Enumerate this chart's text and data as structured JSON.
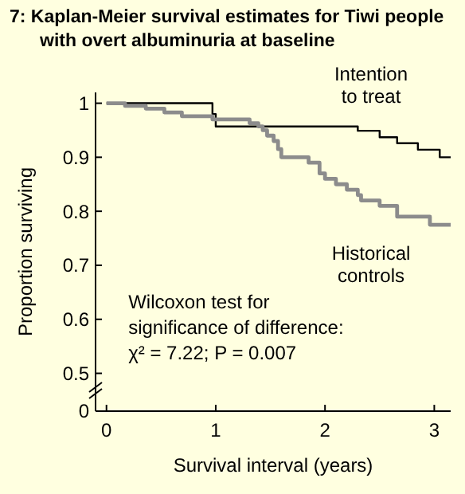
{
  "chart_data": {
    "type": "step",
    "title": "7: Kaplan-Meier survival estimates for Tiwi people\nwith overt albuminuria at baseline",
    "xlabel": "Survival interval (years)",
    "ylabel": "Proportion surviving",
    "xlim": [
      -0.1,
      3.15
    ],
    "xticks": [
      0,
      1,
      2,
      3
    ],
    "ylim": [
      0.43,
      1.02
    ],
    "yticks": [
      {
        "value": 0.43,
        "label": "0"
      },
      0.5,
      0.6,
      0.7,
      0.8,
      0.9,
      1
    ],
    "series": [
      {
        "name": "Intention\nto treat",
        "color": "#000000",
        "x": [
          0,
          0.97,
          1.0,
          2.3,
          2.5,
          2.66,
          2.85,
          3.05,
          3.15
        ],
        "values": [
          1,
          0.98,
          0.957,
          0.949,
          0.937,
          0.926,
          0.914,
          0.9,
          0.9
        ]
      },
      {
        "name": "Historical\ncontrols",
        "color": "#8c8c8c",
        "x": [
          0,
          0.17,
          0.36,
          0.53,
          0.69,
          0.97,
          1.31,
          1.39,
          1.43,
          1.47,
          1.53,
          1.57,
          1.6,
          1.85,
          1.95,
          2.0,
          2.1,
          2.2,
          2.3,
          2.33,
          2.5,
          2.66,
          2.96,
          3.15
        ],
        "values": [
          1,
          0.995,
          0.99,
          0.983,
          0.976,
          0.97,
          0.963,
          0.957,
          0.95,
          0.94,
          0.93,
          0.915,
          0.9,
          0.89,
          0.87,
          0.86,
          0.85,
          0.84,
          0.83,
          0.82,
          0.81,
          0.79,
          0.775,
          0.775
        ]
      }
    ],
    "annotations": [
      "Wilcoxon test for\nsignificance of difference:\nχ² = 7.22; P = 0.007"
    ],
    "grid": false
  }
}
